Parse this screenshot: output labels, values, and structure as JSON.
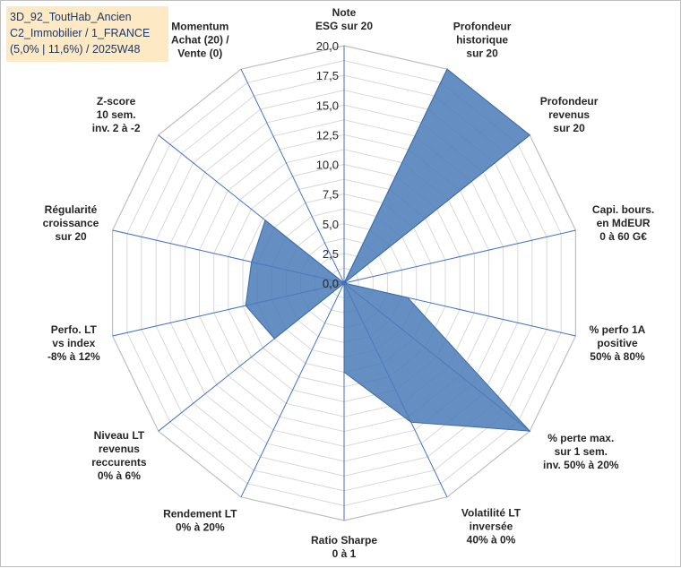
{
  "title_box": {
    "line1": "3D_92_ToutHab_Ancien",
    "line2": "C2_Immobilier / 1_FRANCE",
    "line3": "(5,0% | 11,6%) / 2025W48"
  },
  "chart_data": {
    "type": "radar",
    "rmin": 0,
    "rmax": 20,
    "tick_values": [
      0,
      2.5,
      5,
      7.5,
      10,
      12.5,
      15,
      17.5,
      20
    ],
    "tick_labels": [
      "0,0",
      "2,5",
      "5,0",
      "7,5",
      "10,0",
      "12,5",
      "15,0",
      "17,5",
      "20,0"
    ],
    "categories": [
      [
        "Note",
        "ESG sur 20"
      ],
      [
        "Profondeur",
        "historique",
        "sur 20"
      ],
      [
        "Profondeur",
        "revenus",
        "sur 20"
      ],
      [
        "Capi. bours.",
        "en MdEUR",
        "0 à 60 G€"
      ],
      [
        "% perfo 1A",
        "positive",
        "50% à 80%"
      ],
      [
        "% perte max.",
        "sur 1 sem.",
        "inv. 50% à 20%"
      ],
      [
        "Volatilité LT",
        "inversée",
        "40% à 0%"
      ],
      [
        "Ratio Sharpe",
        "0 à 1"
      ],
      [
        "Rendement LT",
        "0% à 20%"
      ],
      [
        "Niveau LT",
        "revenus",
        "reccurents",
        "0% à 6%"
      ],
      [
        "Perfo. LT",
        "vs index",
        "-8% à 12%"
      ],
      [
        "Régularité",
        "croissance",
        "sur 20"
      ],
      [
        "Z-score",
        "10 sem.",
        "inv. 2 à -2"
      ],
      [
        "Momentum",
        "Achat (20) /",
        "Vente (0)"
      ]
    ],
    "series": [
      {
        "name": "3D_92_ToutHab_Ancien",
        "values": [
          0,
          20,
          20,
          0,
          5.5,
          20,
          13,
          7.5,
          0,
          7.5,
          8.5,
          8,
          8.5,
          0
        ],
        "color": "#4a7bb7"
      }
    ],
    "grid_color": "#d9d9d9",
    "spoke_color": "#4472c4"
  }
}
